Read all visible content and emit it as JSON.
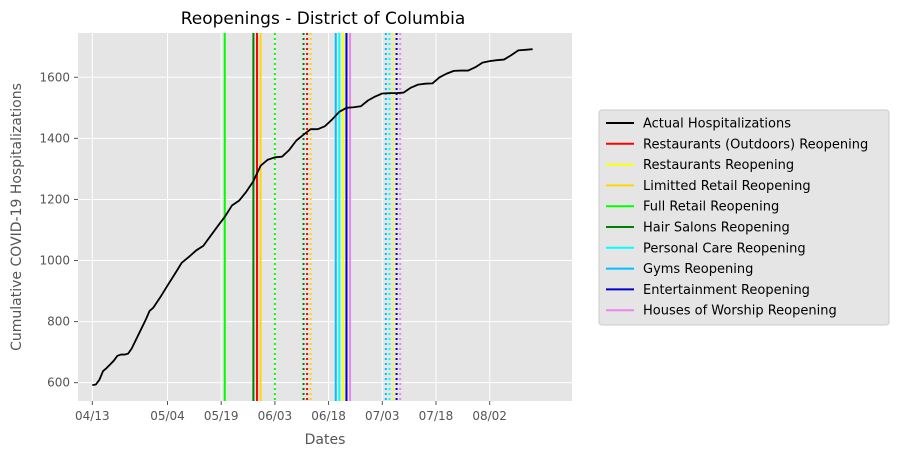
{
  "chart_data": {
    "type": "line",
    "title": "Reopenings - District of Columbia",
    "xlabel": "Dates",
    "ylabel": "Cumulative COVID-19 Hospitalizations",
    "xlim": [
      "2020-04-09",
      "2020-08-25"
    ],
    "ylim": [
      540,
      1745
    ],
    "grid": true,
    "x_ticks": [
      {
        "date": "2020-04-13",
        "label": "04/13"
      },
      {
        "date": "2020-05-04",
        "label": "05/04"
      },
      {
        "date": "2020-05-19",
        "label": "05/19"
      },
      {
        "date": "2020-06-03",
        "label": "06/03"
      },
      {
        "date": "2020-06-18",
        "label": "06/18"
      },
      {
        "date": "2020-07-03",
        "label": "07/03"
      },
      {
        "date": "2020-07-18",
        "label": "07/18"
      },
      {
        "date": "2020-08-02",
        "label": "08/02"
      }
    ],
    "y_ticks": [
      600,
      800,
      1000,
      1200,
      1400,
      1600
    ],
    "legend_position": "right",
    "series": [
      {
        "name": "Actual Hospitalizations",
        "color": "#000000",
        "points": [
          [
            "2020-04-13",
            592
          ],
          [
            "2020-04-14",
            594
          ],
          [
            "2020-04-15",
            610
          ],
          [
            "2020-04-16",
            638
          ],
          [
            "2020-04-17",
            648
          ],
          [
            "2020-04-18",
            660
          ],
          [
            "2020-04-19",
            672
          ],
          [
            "2020-04-20",
            688
          ],
          [
            "2020-04-21",
            692
          ],
          [
            "2020-04-22",
            692
          ],
          [
            "2020-04-23",
            695
          ],
          [
            "2020-04-24",
            712
          ],
          [
            "2020-04-26",
            760
          ],
          [
            "2020-04-28",
            808
          ],
          [
            "2020-04-29",
            835
          ],
          [
            "2020-04-30",
            845
          ],
          [
            "2020-05-02",
            880
          ],
          [
            "2020-05-04",
            918
          ],
          [
            "2020-05-06",
            955
          ],
          [
            "2020-05-08",
            993
          ],
          [
            "2020-05-10",
            1012
          ],
          [
            "2020-05-12",
            1033
          ],
          [
            "2020-05-14",
            1048
          ],
          [
            "2020-05-16",
            1080
          ],
          [
            "2020-05-18",
            1112
          ],
          [
            "2020-05-20",
            1143
          ],
          [
            "2020-05-22",
            1180
          ],
          [
            "2020-05-24",
            1196
          ],
          [
            "2020-05-26",
            1225
          ],
          [
            "2020-05-28",
            1260
          ],
          [
            "2020-05-30",
            1310
          ],
          [
            "2020-06-01",
            1330
          ],
          [
            "2020-06-03",
            1338
          ],
          [
            "2020-06-05",
            1340
          ],
          [
            "2020-06-07",
            1362
          ],
          [
            "2020-06-09",
            1393
          ],
          [
            "2020-06-11",
            1412
          ],
          [
            "2020-06-13",
            1430
          ],
          [
            "2020-06-15",
            1430
          ],
          [
            "2020-06-17",
            1440
          ],
          [
            "2020-06-19",
            1462
          ],
          [
            "2020-06-21",
            1487
          ],
          [
            "2020-06-23",
            1500
          ],
          [
            "2020-06-25",
            1502
          ],
          [
            "2020-06-27",
            1505
          ],
          [
            "2020-06-29",
            1524
          ],
          [
            "2020-07-01",
            1537
          ],
          [
            "2020-07-03",
            1547
          ],
          [
            "2020-07-05",
            1548
          ],
          [
            "2020-07-07",
            1548
          ],
          [
            "2020-07-09",
            1550
          ],
          [
            "2020-07-11",
            1566
          ],
          [
            "2020-07-13",
            1576
          ],
          [
            "2020-07-15",
            1579
          ],
          [
            "2020-07-17",
            1580
          ],
          [
            "2020-07-19",
            1600
          ],
          [
            "2020-07-21",
            1612
          ],
          [
            "2020-07-23",
            1621
          ],
          [
            "2020-07-25",
            1622
          ],
          [
            "2020-07-27",
            1622
          ],
          [
            "2020-07-29",
            1633
          ],
          [
            "2020-07-31",
            1648
          ],
          [
            "2020-08-02",
            1653
          ],
          [
            "2020-08-04",
            1656
          ],
          [
            "2020-08-06",
            1658
          ],
          [
            "2020-08-08",
            1672
          ],
          [
            "2020-08-10",
            1688
          ],
          [
            "2020-08-12",
            1690
          ],
          [
            "2020-08-14",
            1692
          ]
        ]
      }
    ],
    "reopenings": [
      {
        "name": "Restaurants (Outdoors) Reopening",
        "color": "#ff0000",
        "date": "2020-05-29",
        "date_dotted": "2020-06-12"
      },
      {
        "name": "Restaurants Reopening",
        "color": "#ffff00",
        "date": "2020-06-22",
        "date_dotted": "2020-07-06"
      },
      {
        "name": "Limitted Retail Reopening",
        "color": "#ffd700",
        "date": "2020-05-30",
        "date_dotted": "2020-06-13"
      },
      {
        "name": "Full Retail Reopening",
        "color": "#00ff00",
        "date": "2020-05-20",
        "date_dotted": "2020-06-03"
      },
      {
        "name": "Hair Salons Reopening",
        "color": "#008000",
        "date": "2020-05-28",
        "date_dotted": "2020-06-11"
      },
      {
        "name": "Personal Care Reopening",
        "color": "#00ffff",
        "date": "2020-06-21",
        "date_dotted": "2020-07-05"
      },
      {
        "name": "Gyms Reopening",
        "color": "#00bfff",
        "date": "2020-06-20",
        "date_dotted": "2020-07-04"
      },
      {
        "name": "Entertainment Reopening",
        "color": "#0000cd",
        "date": "2020-06-23",
        "date_dotted": "2020-07-07"
      },
      {
        "name": "Houses of Worship Reopening",
        "color": "#ee82ee",
        "date": "2020-06-24",
        "date_dotted": "2020-07-08"
      }
    ]
  }
}
